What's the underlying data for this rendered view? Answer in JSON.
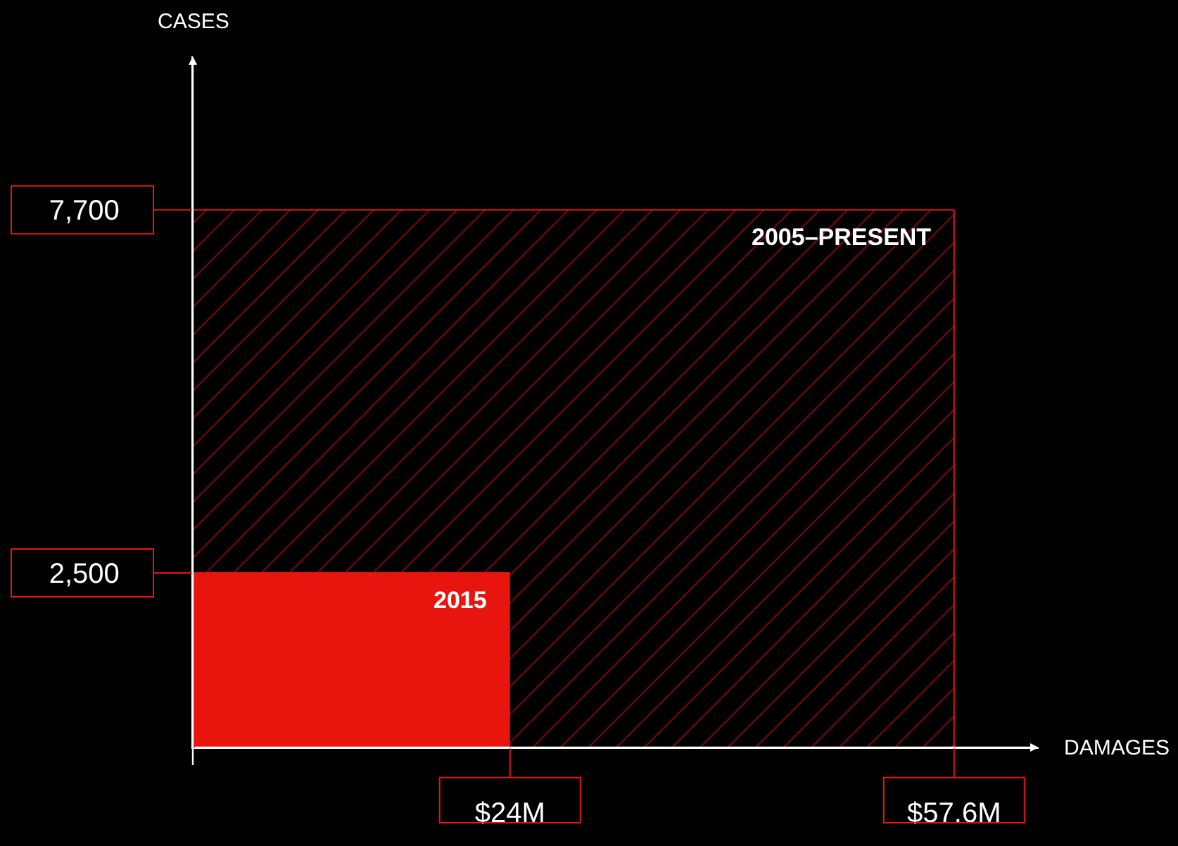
{
  "chart_data": {
    "type": "area",
    "xlabel": "DAMAGES",
    "ylabel": "CASES",
    "series": [
      {
        "name": "2005–PRESENT",
        "color": "#e8150f",
        "x": [
          0,
          57.6
        ],
        "values": [
          7700,
          7700
        ]
      },
      {
        "name": "2015",
        "color": "#e8150f",
        "x": [
          0,
          24
        ],
        "values": [
          2500,
          2500
        ]
      }
    ],
    "xlim": [
      0,
      64
    ],
    "ylim": [
      0,
      9900
    ],
    "xticks": [
      {
        "value": 24,
        "label": "$24M"
      },
      {
        "value": 57.6,
        "label": "$57.6M"
      }
    ],
    "yticks": [
      {
        "value": 2500,
        "label": "2,500"
      },
      {
        "value": 7700,
        "label": "7,700"
      }
    ]
  }
}
